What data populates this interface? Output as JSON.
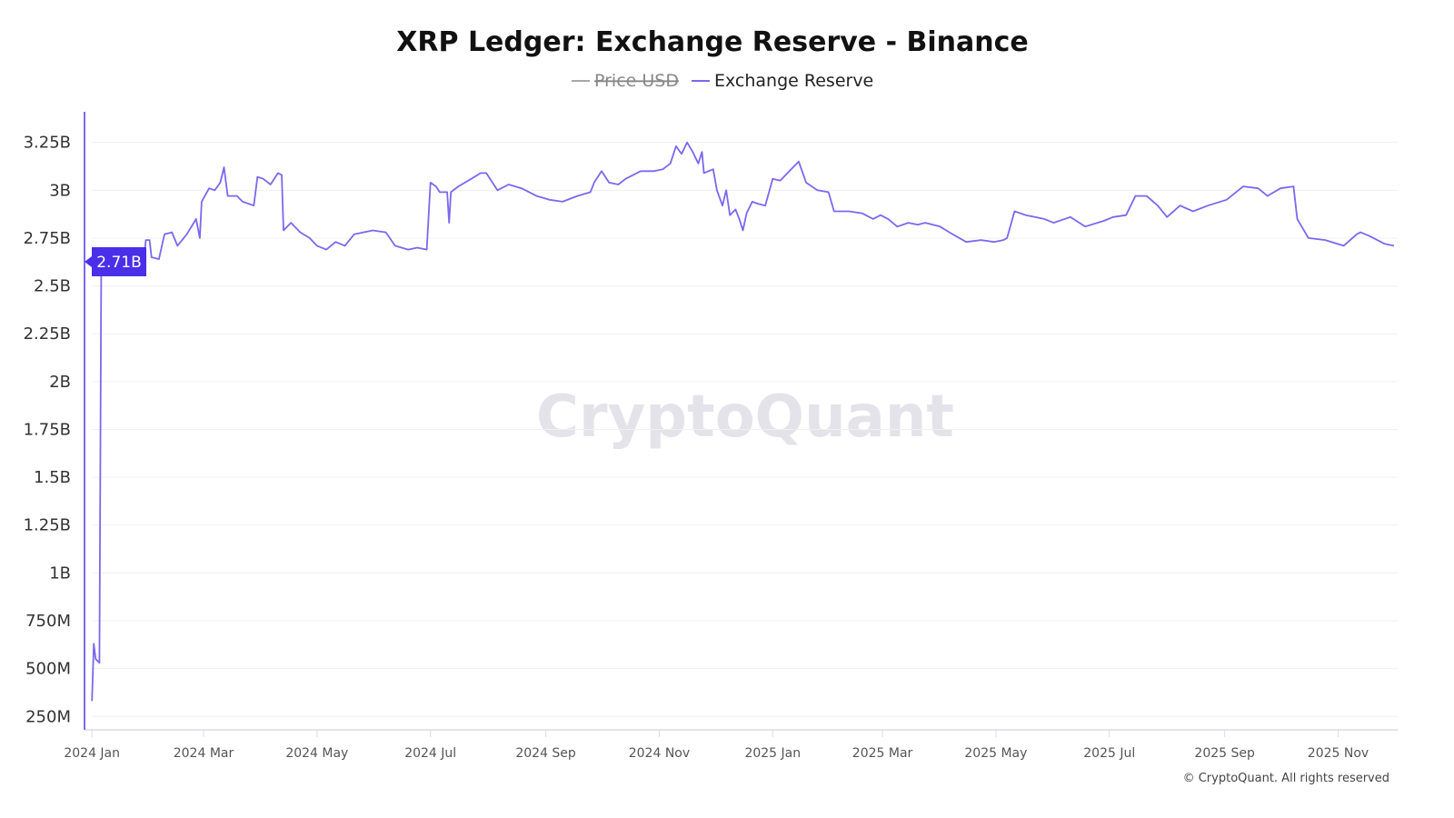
{
  "chart_data": {
    "type": "line",
    "title": "XRP Ledger: Exchange Reserve - Binance",
    "legend": [
      {
        "name": "Price USD",
        "color": "#a8a8a8",
        "hidden": true
      },
      {
        "name": "Exchange Reserve",
        "color": "#7b68ee",
        "hidden": false
      }
    ],
    "legend_position": "top-center",
    "x_unit": "days since 2024-01-01",
    "xlim": [
      -4,
      702
    ],
    "ylim": [
      0.18,
      3.41
    ],
    "y_unit": "billions",
    "grid": true,
    "y_ticks": [
      {
        "v": 3.25,
        "label": "3.25B"
      },
      {
        "v": 3.0,
        "label": "3B"
      },
      {
        "v": 2.75,
        "label": "2.75B"
      },
      {
        "v": 2.5,
        "label": "2.5B"
      },
      {
        "v": 2.25,
        "label": "2.25B"
      },
      {
        "v": 2.0,
        "label": "2B"
      },
      {
        "v": 1.75,
        "label": "1.75B"
      },
      {
        "v": 1.5,
        "label": "1.5B"
      },
      {
        "v": 1.25,
        "label": "1.25B"
      },
      {
        "v": 1.0,
        "label": "1B"
      },
      {
        "v": 0.75,
        "label": "750M"
      },
      {
        "v": 0.5,
        "label": "500M"
      },
      {
        "v": 0.25,
        "label": "250M"
      }
    ],
    "x_ticks": [
      {
        "d": 0,
        "label": "2024 Jan"
      },
      {
        "d": 60,
        "label": "2024 Mar"
      },
      {
        "d": 121,
        "label": "2024 May"
      },
      {
        "d": 182,
        "label": "2024 Jul"
      },
      {
        "d": 244,
        "label": "2024 Sep"
      },
      {
        "d": 305,
        "label": "2024 Nov"
      },
      {
        "d": 366,
        "label": "2025 Jan"
      },
      {
        "d": 425,
        "label": "2025 Mar"
      },
      {
        "d": 486,
        "label": "2025 May"
      },
      {
        "d": 547,
        "label": "2025 Jul"
      },
      {
        "d": 609,
        "label": "2025 Sep"
      },
      {
        "d": 670,
        "label": "2025 Nov"
      }
    ],
    "current_value_label": "2.71B",
    "series": [
      {
        "name": "Exchange Reserve",
        "points": [
          [
            0,
            0.33
          ],
          [
            1,
            0.63
          ],
          [
            2,
            0.55
          ],
          [
            4,
            0.53
          ],
          [
            5,
            2.59
          ],
          [
            7,
            2.61
          ],
          [
            9,
            2.66
          ],
          [
            14,
            2.65
          ],
          [
            19,
            2.64
          ],
          [
            24,
            2.64
          ],
          [
            28,
            2.65
          ],
          [
            29,
            2.74
          ],
          [
            31,
            2.74
          ],
          [
            32,
            2.65
          ],
          [
            36,
            2.64
          ],
          [
            39,
            2.77
          ],
          [
            43,
            2.78
          ],
          [
            46,
            2.71
          ],
          [
            51,
            2.77
          ],
          [
            56,
            2.85
          ],
          [
            58,
            2.75
          ],
          [
            59,
            2.94
          ],
          [
            63,
            3.01
          ],
          [
            66,
            3.0
          ],
          [
            69,
            3.04
          ],
          [
            71,
            3.12
          ],
          [
            73,
            2.97
          ],
          [
            78,
            2.97
          ],
          [
            81,
            2.94
          ],
          [
            87,
            2.92
          ],
          [
            89,
            3.07
          ],
          [
            92,
            3.06
          ],
          [
            96,
            3.03
          ],
          [
            100,
            3.09
          ],
          [
            102,
            3.08
          ],
          [
            103,
            2.79
          ],
          [
            107,
            2.83
          ],
          [
            112,
            2.78
          ],
          [
            117,
            2.75
          ],
          [
            121,
            2.71
          ],
          [
            126,
            2.69
          ],
          [
            131,
            2.73
          ],
          [
            136,
            2.71
          ],
          [
            141,
            2.77
          ],
          [
            151,
            2.79
          ],
          [
            158,
            2.78
          ],
          [
            163,
            2.71
          ],
          [
            170,
            2.69
          ],
          [
            175,
            2.7
          ],
          [
            180,
            2.69
          ],
          [
            182,
            3.04
          ],
          [
            185,
            3.02
          ],
          [
            187,
            2.99
          ],
          [
            191,
            2.99
          ],
          [
            192,
            2.83
          ],
          [
            193,
            2.99
          ],
          [
            197,
            3.02
          ],
          [
            204,
            3.06
          ],
          [
            209,
            3.09
          ],
          [
            212,
            3.09
          ],
          [
            218,
            3.0
          ],
          [
            224,
            3.03
          ],
          [
            231,
            3.01
          ],
          [
            239,
            2.97
          ],
          [
            246,
            2.95
          ],
          [
            253,
            2.94
          ],
          [
            261,
            2.97
          ],
          [
            268,
            2.99
          ],
          [
            270,
            3.04
          ],
          [
            274,
            3.1
          ],
          [
            278,
            3.04
          ],
          [
            283,
            3.03
          ],
          [
            287,
            3.06
          ],
          [
            295,
            3.1
          ],
          [
            302,
            3.1
          ],
          [
            307,
            3.11
          ],
          [
            311,
            3.14
          ],
          [
            314,
            3.23
          ],
          [
            317,
            3.19
          ],
          [
            320,
            3.25
          ],
          [
            323,
            3.2
          ],
          [
            326,
            3.14
          ],
          [
            328,
            3.2
          ],
          [
            329,
            3.09
          ],
          [
            334,
            3.11
          ],
          [
            336,
            3.0
          ],
          [
            339,
            2.92
          ],
          [
            341,
            3.0
          ],
          [
            343,
            2.87
          ],
          [
            346,
            2.9
          ],
          [
            348,
            2.85
          ],
          [
            350,
            2.79
          ],
          [
            352,
            2.88
          ],
          [
            355,
            2.94
          ],
          [
            358,
            2.93
          ],
          [
            362,
            2.92
          ],
          [
            366,
            3.06
          ],
          [
            370,
            3.05
          ],
          [
            375,
            3.1
          ],
          [
            380,
            3.15
          ],
          [
            384,
            3.04
          ],
          [
            390,
            3.0
          ],
          [
            396,
            2.99
          ],
          [
            399,
            2.89
          ],
          [
            407,
            2.89
          ],
          [
            414,
            2.88
          ],
          [
            420,
            2.85
          ],
          [
            424,
            2.87
          ],
          [
            428,
            2.85
          ],
          [
            433,
            2.81
          ],
          [
            439,
            2.83
          ],
          [
            444,
            2.82
          ],
          [
            448,
            2.83
          ],
          [
            456,
            2.81
          ],
          [
            461,
            2.78
          ],
          [
            470,
            2.73
          ],
          [
            478,
            2.74
          ],
          [
            485,
            2.73
          ],
          [
            490,
            2.74
          ],
          [
            492,
            2.75
          ],
          [
            496,
            2.89
          ],
          [
            502,
            2.87
          ],
          [
            512,
            2.85
          ],
          [
            517,
            2.83
          ],
          [
            526,
            2.86
          ],
          [
            534,
            2.81
          ],
          [
            544,
            2.84
          ],
          [
            549,
            2.86
          ],
          [
            556,
            2.87
          ],
          [
            561,
            2.97
          ],
          [
            567,
            2.97
          ],
          [
            573,
            2.92
          ],
          [
            578,
            2.86
          ],
          [
            585,
            2.92
          ],
          [
            592,
            2.89
          ],
          [
            600,
            2.92
          ],
          [
            610,
            2.95
          ],
          [
            619,
            3.02
          ],
          [
            627,
            3.01
          ],
          [
            632,
            2.97
          ],
          [
            639,
            3.01
          ],
          [
            646,
            3.02
          ],
          [
            648,
            2.85
          ],
          [
            654,
            2.75
          ],
          [
            663,
            2.74
          ],
          [
            673,
            2.71
          ],
          [
            680,
            2.77
          ],
          [
            682,
            2.78
          ],
          [
            687,
            2.76
          ],
          [
            695,
            2.72
          ],
          [
            700,
            2.71
          ]
        ]
      }
    ]
  },
  "watermark": "CryptoQuant",
  "footer": "© CryptoQuant. All rights reserved"
}
